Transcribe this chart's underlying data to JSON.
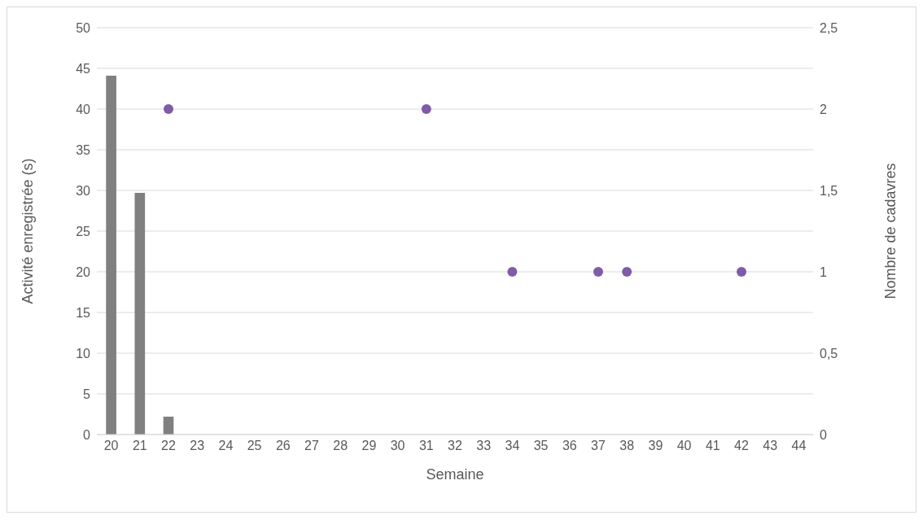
{
  "chart_data": {
    "type": "bar",
    "xlabel": "Semaine",
    "ylabel": "Activité enregistrée (s)",
    "y2label": "Nombre de cadavres",
    "categories": [
      "20",
      "21",
      "22",
      "23",
      "24",
      "25",
      "26",
      "27",
      "28",
      "29",
      "30",
      "31",
      "32",
      "33",
      "34",
      "35",
      "36",
      "37",
      "38",
      "39",
      "40",
      "41",
      "42",
      "43",
      "44"
    ],
    "series": [
      {
        "color": "#808080",
        "values": [
          44.1,
          29.7,
          2.2,
          null,
          null,
          null,
          null,
          null,
          null,
          null,
          null,
          null,
          null,
          null,
          null,
          null,
          null,
          null,
          null,
          null,
          null,
          null,
          null,
          null,
          null
        ]
      },
      {
        "type": "scatter",
        "axis": "y2",
        "color": "#7e5ca7",
        "values": [
          null,
          null,
          2,
          null,
          null,
          null,
          null,
          null,
          null,
          null,
          null,
          2,
          null,
          null,
          1,
          null,
          null,
          1,
          1,
          null,
          null,
          null,
          1,
          null,
          null
        ]
      }
    ],
    "ylim": [
      0,
      50
    ],
    "yticks": [
      0,
      5,
      10,
      15,
      20,
      25,
      30,
      35,
      40,
      45,
      50
    ],
    "y2lim": [
      0,
      2.5
    ],
    "y2ticks": [
      0,
      {
        "value": 0.5,
        "label": "0,5"
      },
      1,
      {
        "value": 1.5,
        "label": "1,5"
      },
      2,
      {
        "value": 2.5,
        "label": "2,5"
      }
    ],
    "grid": "y",
    "legend": false,
    "marker": "circle"
  }
}
